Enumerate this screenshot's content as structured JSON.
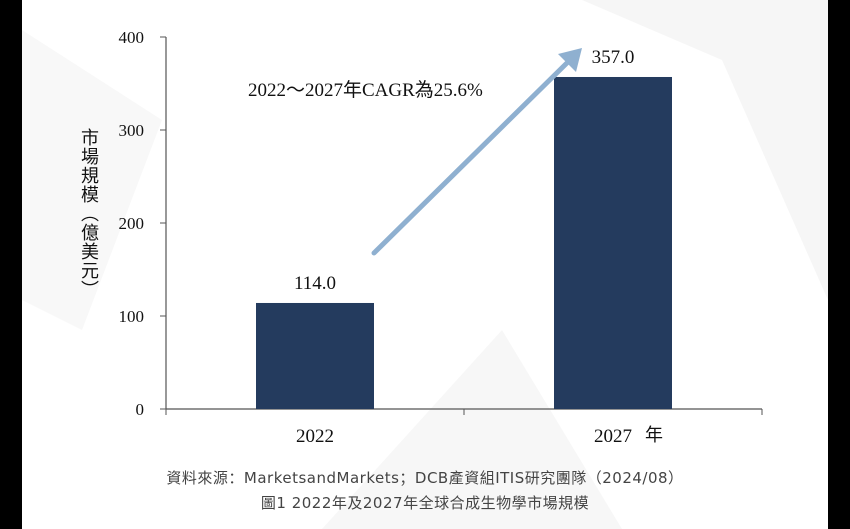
{
  "colors": {
    "bar": "#243b5e",
    "arrow": "#8fb0d0",
    "axis": "#555555",
    "frame_bg": "#ffffff",
    "outer_bg": "#000000"
  },
  "chart_data": {
    "type": "bar",
    "categories": [
      "2022",
      "2027"
    ],
    "values": [
      114.0,
      357.0
    ],
    "value_labels": [
      "114.0",
      "357.0"
    ],
    "ylim": [
      0,
      400
    ],
    "yticks": [
      0,
      100,
      200,
      300,
      400
    ],
    "ylabel": "市場規模（億美元）",
    "unit_label": "年",
    "annotation": "2022～2027年CAGR為25.6%",
    "grid": false,
    "legend": "none"
  },
  "source_text": "資料來源：MarketsandMarkets；DCB產資組ITIS研究團隊（2024/08）",
  "caption_text": "圖1 2022年及2027年全球合成生物學市場規模"
}
